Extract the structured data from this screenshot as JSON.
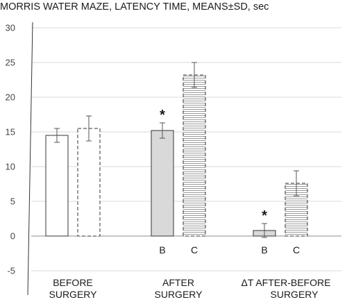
{
  "chart_data": {
    "type": "bar",
    "title": "MORRIS WATER MAZE, LATENCY TIME, MEANS±SD, sec",
    "xlabel": "",
    "ylabel": "",
    "ylim": [
      -5,
      30
    ],
    "yticks": [
      -5,
      0,
      5,
      10,
      15,
      20,
      25,
      30
    ],
    "grid": true,
    "legend": "none",
    "categories": [
      "BEFORE SURGERY",
      "AFTER SURGERY",
      "ΔT AFTER-BEFORE SURGERY"
    ],
    "bars": [
      {
        "category": 0,
        "group": "B",
        "value": 14.5,
        "sd": 1.0,
        "style": "white-solid",
        "letter": "",
        "star": false
      },
      {
        "category": 0,
        "group": "C",
        "value": 15.5,
        "sd": 1.8,
        "style": "white-dashed",
        "letter": "",
        "star": false
      },
      {
        "category": 1,
        "group": "B",
        "value": 15.2,
        "sd": 1.1,
        "style": "gray-solid",
        "letter": "B",
        "star": true
      },
      {
        "category": 1,
        "group": "C",
        "value": 23.2,
        "sd": 1.8,
        "style": "hatched-dashed",
        "letter": "C",
        "star": false
      },
      {
        "category": 2,
        "group": "B",
        "value": 0.8,
        "sd": 1.0,
        "style": "gray-solid",
        "letter": "B",
        "star": true
      },
      {
        "category": 2,
        "group": "C",
        "value": 7.6,
        "sd": 1.8,
        "style": "hatched-dashed",
        "letter": "C",
        "star": false
      }
    ],
    "star_symbol": "*",
    "colors": {
      "gray_fill": "#d9d9d9",
      "edge": "#333333",
      "grid": "#d9d9d9",
      "hatch": "#9a9a9a"
    }
  }
}
